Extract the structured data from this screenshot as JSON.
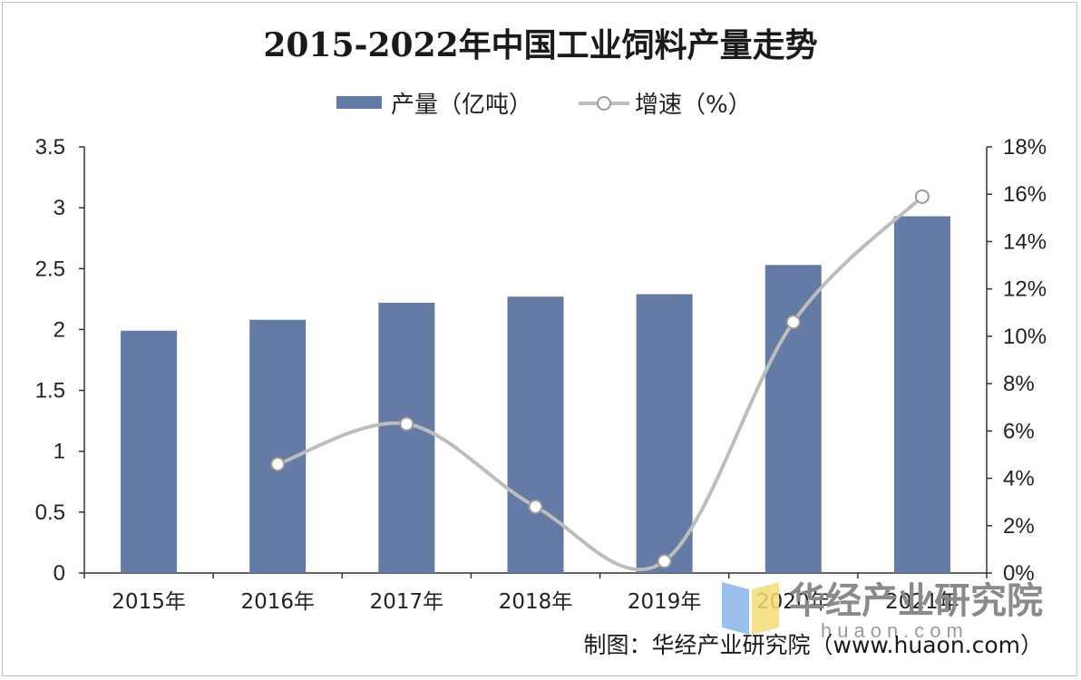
{
  "chart_data": {
    "type": "bar+line",
    "title": "2015-2022年中国工业饲料产量走势",
    "categories": [
      "2015年",
      "2016年",
      "2017年",
      "2018年",
      "2019年",
      "2020年",
      "2021年"
    ],
    "series": [
      {
        "name": "产量（亿吨）",
        "type": "bar",
        "axis": "left",
        "color": "#647ba5",
        "values": [
          1.99,
          2.08,
          2.22,
          2.27,
          2.29,
          2.53,
          2.93
        ]
      },
      {
        "name": "增速（%）",
        "type": "line",
        "axis": "right",
        "color": "#bdbdbd",
        "values": [
          null,
          4.6,
          6.3,
          2.8,
          0.5,
          10.6,
          15.9
        ]
      }
    ],
    "left_axis": {
      "ylim": [
        0,
        3.5
      ],
      "ticks": [
        "0",
        "0.5",
        "1",
        "1.5",
        "2",
        "2.5",
        "3",
        "3.5"
      ]
    },
    "right_axis": {
      "ylim": [
        0,
        18
      ],
      "ticks": [
        "0%",
        "2%",
        "4%",
        "6%",
        "8%",
        "10%",
        "12%",
        "14%",
        "16%",
        "18%"
      ]
    },
    "grid": false,
    "legend_position": "top-center"
  },
  "legend": {
    "bar_label": "产量（亿吨）",
    "line_label": "增速（%）"
  },
  "source": "制图：华经产业研究院（www.huaon.com）",
  "watermark": {
    "cn": "华经产业研究院",
    "en": "huaon.com"
  }
}
